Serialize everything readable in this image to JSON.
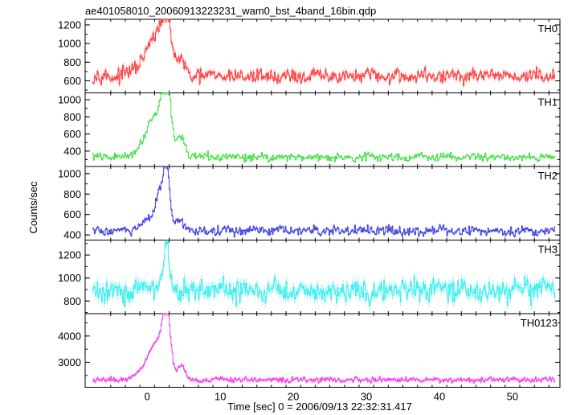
{
  "title": "ae401058010_20060913223231_wam0_bst_4band_16bin.qdp",
  "ylabel": "Counts/sec",
  "xlabel": "Time [sec] 0 = 2006/09/13 22:32:31.417",
  "chart_data": {
    "type": "line",
    "title": "ae401058010_20060913223231_wam0_bst_4band_16bin.qdp",
    "xlabel": "Time [sec] 0 = 2006/09/13 22:32:31.417",
    "ylabel": "Counts/sec",
    "xlim": [
      -8.5,
      56.5
    ],
    "xticks": [
      0,
      10,
      20,
      30,
      40,
      50
    ],
    "grid": false,
    "panels": [
      {
        "name": "TH0",
        "color": "#ff3333",
        "ylim": [
          470,
          1260
        ],
        "yticks": [
          600,
          800,
          1000,
          1200
        ],
        "baseline": 650,
        "noise": 45,
        "peaks": [
          {
            "t": 2.6,
            "height": 560,
            "width": 0.6
          },
          {
            "t": 1.4,
            "height": 300,
            "width": 1.2
          },
          {
            "t": 0.0,
            "height": 150,
            "width": 1.5
          },
          {
            "t": 4.5,
            "height": 150,
            "width": 0.6
          }
        ]
      },
      {
        "name": "TH1",
        "color": "#33dd33",
        "ylim": [
          220,
          1080
        ],
        "yticks": [
          400,
          600,
          800,
          1000
        ],
        "baseline": 330,
        "noise": 28,
        "peaks": [
          {
            "t": 2.6,
            "height": 720,
            "width": 0.55
          },
          {
            "t": 1.5,
            "height": 420,
            "width": 1.2
          },
          {
            "t": 0.0,
            "height": 150,
            "width": 1.3
          },
          {
            "t": 4.6,
            "height": 230,
            "width": 0.5
          }
        ]
      },
      {
        "name": "TH2",
        "color": "#3333dd",
        "ylim": [
          350,
          1070
        ],
        "yticks": [
          400,
          600,
          800,
          1000
        ],
        "baseline": 440,
        "noise": 28,
        "peaks": [
          {
            "t": 2.6,
            "height": 580,
            "width": 0.4
          },
          {
            "t": 1.7,
            "height": 320,
            "width": 0.5
          },
          {
            "t": 0.6,
            "height": 120,
            "width": 1.2
          },
          {
            "t": 4.5,
            "height": 110,
            "width": 0.5
          }
        ]
      },
      {
        "name": "TH3",
        "color": "#33eeee",
        "ylim": [
          690,
          1330
        ],
        "yticks": [
          800,
          1000,
          1200
        ],
        "baseline": 890,
        "noise": 60,
        "peaks": [
          {
            "t": 2.6,
            "height": 330,
            "width": 0.35
          },
          {
            "t": 2.0,
            "height": 80,
            "width": 1.0
          }
        ]
      },
      {
        "name": "TH0123",
        "color": "#ee33ee",
        "ylim": [
          2050,
          4850
        ],
        "yticks": [
          3000,
          4000
        ],
        "baseline": 2330,
        "noise": 55,
        "peaks": [
          {
            "t": 2.6,
            "height": 2300,
            "width": 0.5
          },
          {
            "t": 1.4,
            "height": 1200,
            "width": 1.1
          },
          {
            "t": 0.0,
            "height": 400,
            "width": 1.4
          },
          {
            "t": 4.6,
            "height": 550,
            "width": 0.55
          }
        ]
      }
    ]
  }
}
